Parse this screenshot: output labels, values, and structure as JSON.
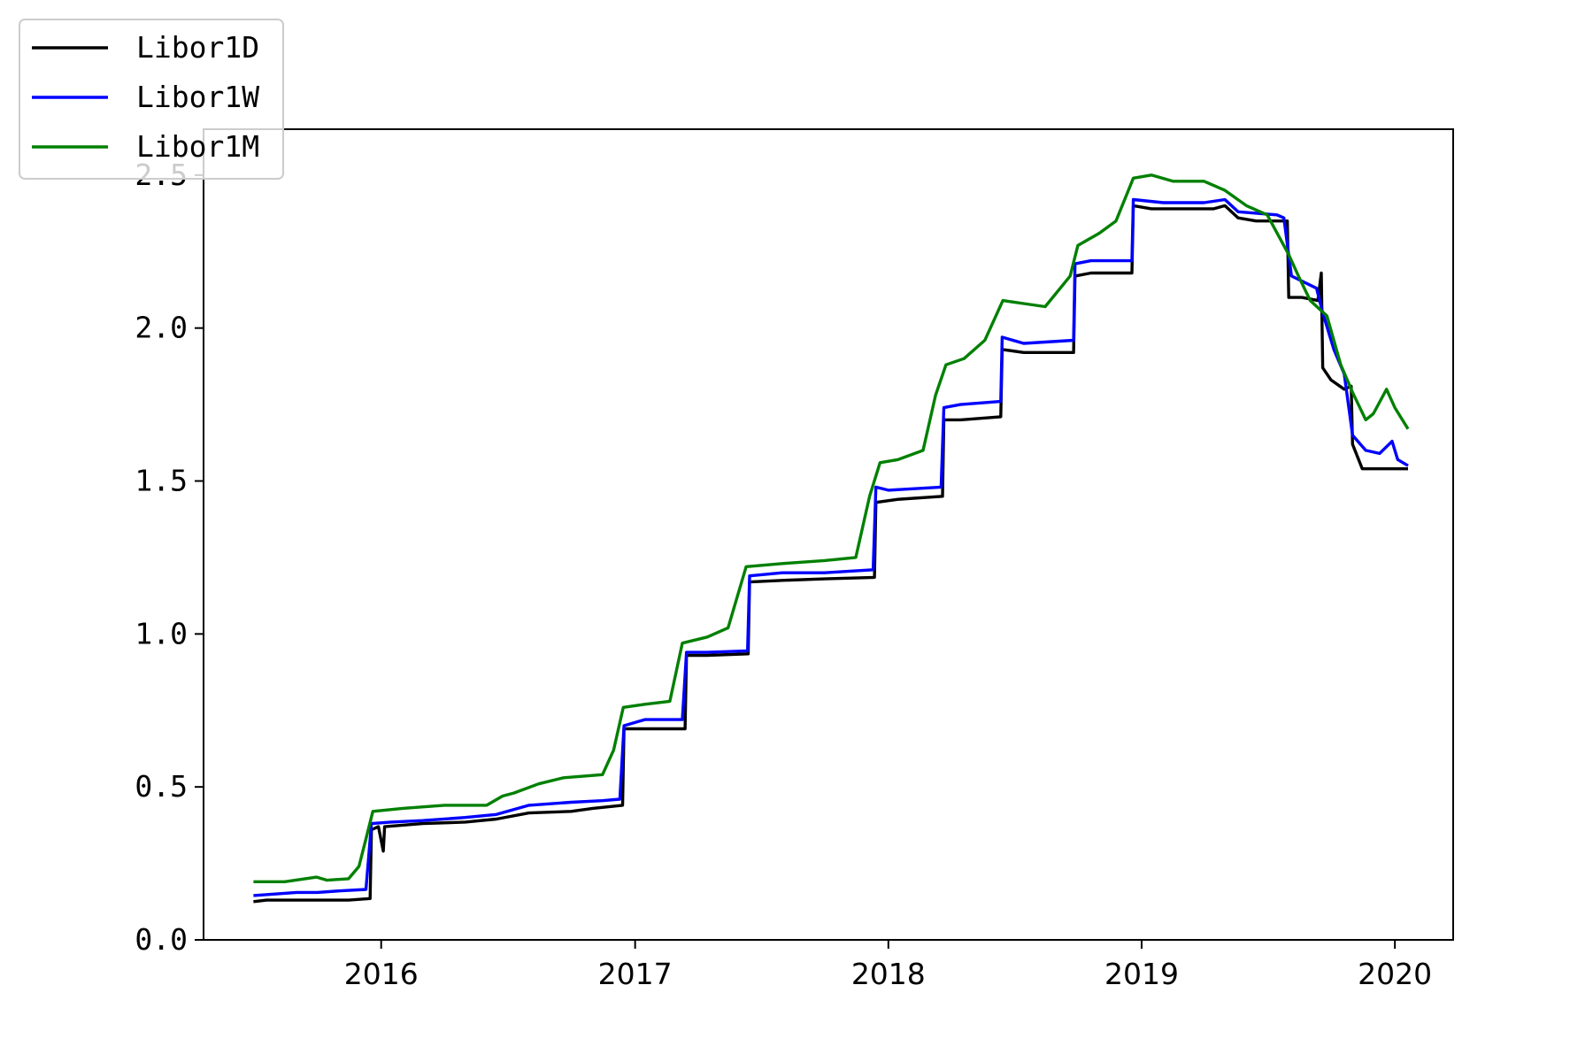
{
  "chart_data": {
    "type": "line",
    "title": "",
    "xlabel": "",
    "ylabel": "",
    "xlim": [
      "2015-04-20",
      "2020-03-25"
    ],
    "ylim": [
      0,
      2.65
    ],
    "xticks": [
      "2016",
      "2017",
      "2018",
      "2019",
      "2020"
    ],
    "yticks": [
      "0.0",
      "0.5",
      "1.0",
      "1.5",
      "2.0",
      "2.5"
    ],
    "grid": false,
    "legend_position": "top-left",
    "series": [
      {
        "name": "Libor1D",
        "color": "#000000",
        "points": [
          [
            "2015-07-01",
            0.125
          ],
          [
            "2015-07-20",
            0.13
          ],
          [
            "2015-09-01",
            0.13
          ],
          [
            "2015-09-30",
            0.13
          ],
          [
            "2015-10-15",
            0.13
          ],
          [
            "2015-11-15",
            0.13
          ],
          [
            "2015-12-16",
            0.135
          ],
          [
            "2015-12-18",
            0.36
          ],
          [
            "2015-12-28",
            0.37
          ],
          [
            "2016-01-04",
            0.29
          ],
          [
            "2016-01-06",
            0.37
          ],
          [
            "2016-03-01",
            0.38
          ],
          [
            "2016-05-01",
            0.385
          ],
          [
            "2016-06-15",
            0.395
          ],
          [
            "2016-08-01",
            0.415
          ],
          [
            "2016-10-01",
            0.42
          ],
          [
            "2016-11-01",
            0.43
          ],
          [
            "2016-12-14",
            0.44
          ],
          [
            "2016-12-16",
            0.69
          ],
          [
            "2017-01-15",
            0.69
          ],
          [
            "2017-03-14",
            0.69
          ],
          [
            "2017-03-16",
            0.93
          ],
          [
            "2017-04-15",
            0.93
          ],
          [
            "2017-06-13",
            0.935
          ],
          [
            "2017-06-15",
            1.17
          ],
          [
            "2017-08-01",
            1.175
          ],
          [
            "2017-10-01",
            1.18
          ],
          [
            "2017-12-12",
            1.185
          ],
          [
            "2017-12-14",
            1.43
          ],
          [
            "2018-01-15",
            1.44
          ],
          [
            "2018-03-20",
            1.45
          ],
          [
            "2018-03-22",
            1.7
          ],
          [
            "2018-04-15",
            1.7
          ],
          [
            "2018-06-12",
            1.71
          ],
          [
            "2018-06-14",
            1.93
          ],
          [
            "2018-07-15",
            1.92
          ],
          [
            "2018-09-25",
            1.92
          ],
          [
            "2018-09-27",
            2.17
          ],
          [
            "2018-10-20",
            2.18
          ],
          [
            "2018-12-18",
            2.18
          ],
          [
            "2018-12-20",
            2.4
          ],
          [
            "2019-01-15",
            2.39
          ],
          [
            "2019-02-15",
            2.39
          ],
          [
            "2019-04-15",
            2.39
          ],
          [
            "2019-05-01",
            2.4
          ],
          [
            "2019-05-20",
            2.36
          ],
          [
            "2019-06-15",
            2.35
          ],
          [
            "2019-07-30",
            2.35
          ],
          [
            "2019-08-01",
            2.1
          ],
          [
            "2019-08-20",
            2.1
          ],
          [
            "2019-09-12",
            2.09
          ],
          [
            "2019-09-17",
            2.18
          ],
          [
            "2019-09-19",
            1.87
          ],
          [
            "2019-10-01",
            1.83
          ],
          [
            "2019-10-20",
            1.8
          ],
          [
            "2019-10-30",
            1.81
          ],
          [
            "2019-11-01",
            1.62
          ],
          [
            "2019-11-15",
            1.54
          ],
          [
            "2019-12-15",
            1.54
          ],
          [
            "2020-01-20",
            1.54
          ]
        ]
      },
      {
        "name": "Libor1W",
        "color": "#0000ff",
        "points": [
          [
            "2015-07-01",
            0.145
          ],
          [
            "2015-08-01",
            0.15
          ],
          [
            "2015-09-01",
            0.155
          ],
          [
            "2015-10-01",
            0.155
          ],
          [
            "2015-11-01",
            0.16
          ],
          [
            "2015-12-10",
            0.165
          ],
          [
            "2015-12-18",
            0.38
          ],
          [
            "2016-01-15",
            0.385
          ],
          [
            "2016-03-01",
            0.39
          ],
          [
            "2016-05-01",
            0.4
          ],
          [
            "2016-06-15",
            0.41
          ],
          [
            "2016-08-01",
            0.44
          ],
          [
            "2016-10-01",
            0.45
          ],
          [
            "2016-11-15",
            0.455
          ],
          [
            "2016-12-10",
            0.46
          ],
          [
            "2016-12-16",
            0.7
          ],
          [
            "2017-01-15",
            0.72
          ],
          [
            "2017-03-10",
            0.72
          ],
          [
            "2017-03-16",
            0.94
          ],
          [
            "2017-04-15",
            0.94
          ],
          [
            "2017-06-12",
            0.945
          ],
          [
            "2017-06-15",
            1.19
          ],
          [
            "2017-08-01",
            1.2
          ],
          [
            "2017-10-01",
            1.2
          ],
          [
            "2017-12-10",
            1.21
          ],
          [
            "2017-12-14",
            1.48
          ],
          [
            "2018-01-01",
            1.47
          ],
          [
            "2018-03-18",
            1.48
          ],
          [
            "2018-03-22",
            1.74
          ],
          [
            "2018-04-15",
            1.75
          ],
          [
            "2018-06-12",
            1.76
          ],
          [
            "2018-06-14",
            1.97
          ],
          [
            "2018-07-15",
            1.95
          ],
          [
            "2018-09-25",
            1.96
          ],
          [
            "2018-09-27",
            2.21
          ],
          [
            "2018-10-20",
            2.22
          ],
          [
            "2018-12-18",
            2.22
          ],
          [
            "2018-12-20",
            2.42
          ],
          [
            "2019-02-01",
            2.41
          ],
          [
            "2019-04-01",
            2.41
          ],
          [
            "2019-05-01",
            2.42
          ],
          [
            "2019-05-20",
            2.38
          ],
          [
            "2019-07-15",
            2.37
          ],
          [
            "2019-07-25",
            2.36
          ],
          [
            "2019-08-05",
            2.17
          ],
          [
            "2019-09-10",
            2.13
          ],
          [
            "2019-09-19",
            2.05
          ],
          [
            "2019-10-05",
            1.93
          ],
          [
            "2019-10-20",
            1.85
          ],
          [
            "2019-11-01",
            1.65
          ],
          [
            "2019-11-20",
            1.6
          ],
          [
            "2019-12-10",
            1.59
          ],
          [
            "2019-12-28",
            1.63
          ],
          [
            "2020-01-05",
            1.57
          ],
          [
            "2020-01-20",
            1.55
          ]
        ]
      },
      {
        "name": "Libor1M",
        "color": "#008000",
        "points": [
          [
            "2015-07-01",
            0.19
          ],
          [
            "2015-08-15",
            0.19
          ],
          [
            "2015-09-30",
            0.205
          ],
          [
            "2015-10-15",
            0.195
          ],
          [
            "2015-11-15",
            0.2
          ],
          [
            "2015-11-30",
            0.24
          ],
          [
            "2015-12-10",
            0.33
          ],
          [
            "2015-12-20",
            0.42
          ],
          [
            "2016-02-01",
            0.43
          ],
          [
            "2016-04-01",
            0.44
          ],
          [
            "2016-06-01",
            0.44
          ],
          [
            "2016-06-24",
            0.47
          ],
          [
            "2016-07-10",
            0.48
          ],
          [
            "2016-08-15",
            0.51
          ],
          [
            "2016-09-20",
            0.53
          ],
          [
            "2016-11-15",
            0.54
          ],
          [
            "2016-12-01",
            0.62
          ],
          [
            "2016-12-15",
            0.76
          ],
          [
            "2017-01-15",
            0.77
          ],
          [
            "2017-02-20",
            0.78
          ],
          [
            "2017-03-10",
            0.97
          ],
          [
            "2017-04-15",
            0.99
          ],
          [
            "2017-05-15",
            1.02
          ],
          [
            "2017-06-10",
            1.22
          ],
          [
            "2017-08-01",
            1.23
          ],
          [
            "2017-10-01",
            1.24
          ],
          [
            "2017-11-15",
            1.25
          ],
          [
            "2017-12-05",
            1.45
          ],
          [
            "2017-12-20",
            1.56
          ],
          [
            "2018-01-15",
            1.57
          ],
          [
            "2018-02-20",
            1.6
          ],
          [
            "2018-03-10",
            1.78
          ],
          [
            "2018-03-25",
            1.88
          ],
          [
            "2018-04-20",
            1.9
          ],
          [
            "2018-05-20",
            1.96
          ],
          [
            "2018-06-15",
            2.09
          ],
          [
            "2018-07-15",
            2.08
          ],
          [
            "2018-08-15",
            2.07
          ],
          [
            "2018-09-20",
            2.17
          ],
          [
            "2018-10-01",
            2.27
          ],
          [
            "2018-11-01",
            2.31
          ],
          [
            "2018-11-25",
            2.35
          ],
          [
            "2018-12-20",
            2.49
          ],
          [
            "2019-01-15",
            2.5
          ],
          [
            "2019-02-15",
            2.48
          ],
          [
            "2019-04-01",
            2.48
          ],
          [
            "2019-05-01",
            2.45
          ],
          [
            "2019-06-01",
            2.4
          ],
          [
            "2019-07-01",
            2.37
          ],
          [
            "2019-08-01",
            2.24
          ],
          [
            "2019-08-15",
            2.17
          ],
          [
            "2019-09-01",
            2.09
          ],
          [
            "2019-09-25",
            2.04
          ],
          [
            "2019-10-15",
            1.88
          ],
          [
            "2019-11-01",
            1.79
          ],
          [
            "2019-11-20",
            1.7
          ],
          [
            "2019-12-01",
            1.72
          ],
          [
            "2019-12-20",
            1.8
          ],
          [
            "2020-01-01",
            1.74
          ],
          [
            "2020-01-20",
            1.67
          ]
        ]
      }
    ]
  }
}
